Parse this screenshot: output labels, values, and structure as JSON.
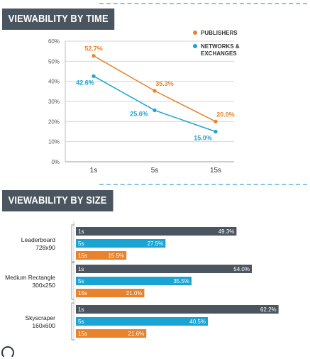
{
  "colors": {
    "header_bg": "#4b5560",
    "header_text": "#ffffff",
    "publishers": "#e8822c",
    "networks": "#1aa4d4",
    "bar_1s": "#4b5560",
    "bar_5s": "#1aa4d4",
    "bar_15s": "#e8822c",
    "grid": "#d6d6d6",
    "dash": "#86c4e6"
  },
  "section_time": {
    "title": "VIEWABILITY BY TIME"
  },
  "section_size": {
    "title": "VIEWABILITY BY SIZE"
  },
  "chart_data": [
    {
      "type": "line",
      "title": "VIEWABILITY BY TIME",
      "xlabel": "",
      "ylabel": "",
      "categories": [
        "1s",
        "5s",
        "15s"
      ],
      "ylim": [
        0,
        60
      ],
      "yticks": [
        "0%",
        "10%",
        "20%",
        "30%",
        "40%",
        "50%",
        "60%"
      ],
      "grid": true,
      "legend_position": "top-right",
      "series": [
        {
          "name": "PUBLISHERS",
          "color": "#e8822c",
          "values": [
            52.7,
            35.3,
            20.0
          ],
          "labels": [
            "52.7%",
            "35.3%",
            "20.0%"
          ]
        },
        {
          "name": "NETWORKS & EXCHANGES",
          "legend_lines": [
            "NETWORKS &",
            "EXCHANGES"
          ],
          "color": "#1aa4d4",
          "values": [
            42.6,
            25.6,
            15.0
          ],
          "labels": [
            "42.6%",
            "25.6%",
            "15.0%"
          ]
        }
      ]
    },
    {
      "type": "bar",
      "orientation": "horizontal",
      "title": "VIEWABILITY BY SIZE",
      "xlabel": "",
      "ylabel": "",
      "xlim": [
        0,
        65
      ],
      "series_names": [
        "1s",
        "5s",
        "15s"
      ],
      "groups": [
        {
          "name": "Leaderboard",
          "size": "728x90",
          "values": [
            49.3,
            27.5,
            15.5
          ],
          "labels": [
            "49.3%",
            "27.5%",
            "15.5%"
          ]
        },
        {
          "name": "Medium Rectangle",
          "size": "300x250",
          "values": [
            54.0,
            35.5,
            21.0
          ],
          "labels": [
            "54.0%",
            "35.5%",
            "21.0%"
          ]
        },
        {
          "name": "Skyscraper",
          "size": "160x600",
          "values": [
            62.2,
            40.5,
            21.6
          ],
          "labels": [
            "62.2%",
            "40.5%",
            "21.6%"
          ]
        }
      ]
    }
  ]
}
